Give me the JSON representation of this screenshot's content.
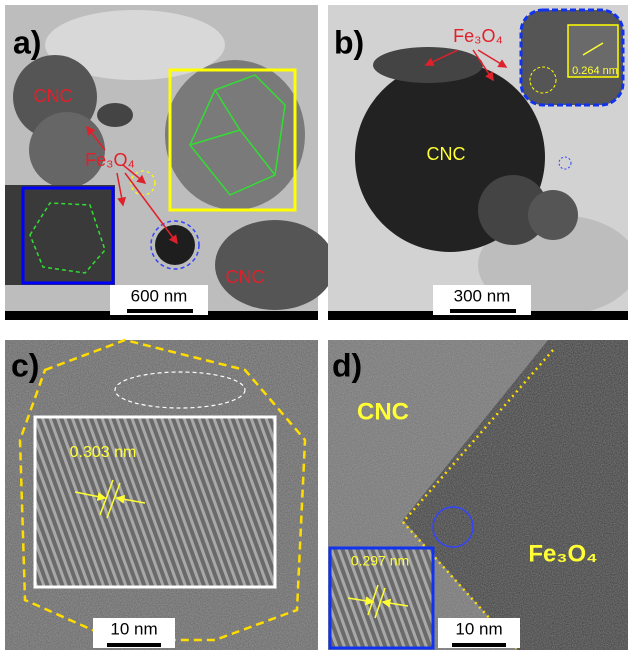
{
  "panels": [
    {
      "label": "a)",
      "annotations": [
        "CNC",
        "Fe₃O₄",
        "CNC"
      ],
      "scale_bar": "600 nm"
    },
    {
      "label": "b)",
      "annotations": [
        "Fe₃O₄",
        "CNC"
      ],
      "inset_spacing": "0.264 nm",
      "scale_bar": "300 nm"
    },
    {
      "label": "c)",
      "inset_spacing": "0.303 nm",
      "scale_bar": "10 nm"
    },
    {
      "label": "d)",
      "annotations": [
        "CNC",
        "Fe₃O₄"
      ],
      "inset_spacing": "0.297 nm",
      "scale_bar": "10 nm"
    }
  ]
}
